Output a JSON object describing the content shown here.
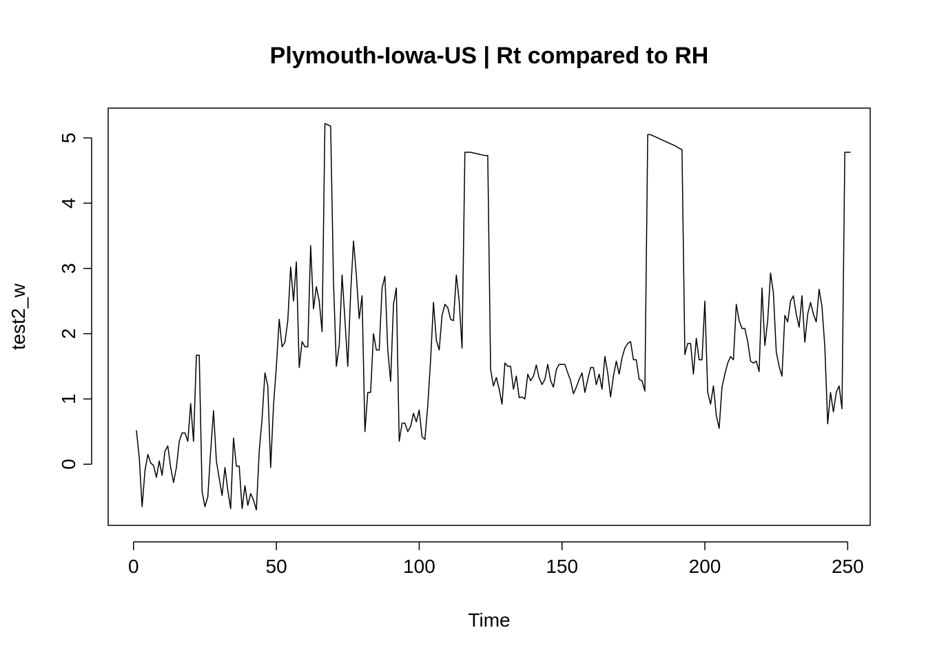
{
  "chart_data": {
    "type": "line",
    "title": "Plymouth-Iowa-US | Rt compared to RH",
    "xlabel": "Time",
    "ylabel": "test2_w",
    "xlim": [
      1,
      248
    ],
    "ylim": [
      -0.7,
      5.22
    ],
    "x_ticks": [
      0,
      50,
      100,
      150,
      200,
      250
    ],
    "y_ticks": [
      0,
      1,
      2,
      3,
      4,
      5
    ],
    "x_tick_labels": [
      "0",
      "50",
      "100",
      "150",
      "200",
      "250"
    ],
    "y_tick_labels": [
      "0",
      "1",
      "2",
      "3",
      "4",
      "5"
    ],
    "grid": false,
    "series": [
      {
        "values": [
          0.52,
          0.1,
          -0.65,
          -0.1,
          0.15,
          0.02,
          -0.02,
          -0.2,
          0.05,
          -0.17,
          0.2,
          0.28,
          -0.05,
          -0.28,
          -0.05,
          0.35,
          0.48,
          0.48,
          0.35,
          0.93,
          0.35,
          1.67,
          1.67,
          -0.42,
          -0.65,
          -0.5,
          0.2,
          0.82,
          0.05,
          -0.22,
          -0.48,
          -0.05,
          -0.4,
          -0.68,
          0.4,
          -0.03,
          -0.03,
          -0.68,
          -0.33,
          -0.63,
          -0.45,
          -0.55,
          -0.7,
          0.2,
          0.7,
          1.4,
          1.2,
          -0.05,
          0.9,
          1.5,
          2.22,
          1.8,
          1.87,
          2.2,
          3.02,
          2.5,
          3.1,
          1.48,
          1.88,
          1.8,
          1.8,
          3.35,
          2.38,
          2.72,
          2.5,
          2.03,
          5.22,
          5.2,
          5.18,
          2.8,
          1.5,
          1.82,
          2.9,
          2.22,
          1.5,
          2.62,
          3.42,
          2.9,
          2.23,
          2.58,
          0.5,
          1.1,
          1.1,
          2.0,
          1.75,
          1.75,
          2.7,
          2.88,
          1.75,
          1.27,
          2.45,
          2.7,
          0.35,
          0.63,
          0.63,
          0.5,
          0.58,
          0.78,
          0.65,
          0.83,
          0.42,
          0.38,
          0.9,
          1.6,
          2.48,
          1.9,
          1.75,
          2.28,
          2.45,
          2.4,
          2.22,
          2.2,
          2.9,
          2.5,
          1.78,
          4.78,
          4.78,
          4.78,
          4.77,
          4.76,
          4.75,
          4.74,
          4.73,
          4.73,
          1.45,
          1.2,
          1.33,
          1.15,
          0.92,
          1.55,
          1.5,
          1.5,
          1.15,
          1.35,
          1.02,
          1.03,
          1.0,
          1.38,
          1.28,
          1.35,
          1.52,
          1.32,
          1.22,
          1.3,
          1.53,
          1.28,
          1.18,
          1.45,
          1.53,
          1.53,
          1.53,
          1.4,
          1.28,
          1.08,
          1.18,
          1.3,
          1.4,
          1.1,
          1.3,
          1.48,
          1.48,
          1.22,
          1.38,
          1.15,
          1.65,
          1.4,
          1.03,
          1.35,
          1.58,
          1.38,
          1.63,
          1.78,
          1.85,
          1.88,
          1.6,
          1.6,
          1.3,
          1.28,
          1.12,
          5.05,
          5.05,
          5.03,
          5.01,
          4.99,
          4.97,
          4.95,
          4.93,
          4.91,
          4.89,
          4.87,
          4.84,
          4.82,
          1.68,
          1.85,
          1.85,
          1.38,
          1.93,
          1.6,
          1.6,
          2.5,
          1.1,
          0.92,
          1.2,
          0.75,
          0.55,
          1.18,
          1.38,
          1.55,
          1.65,
          1.6,
          2.45,
          2.2,
          2.08,
          2.08,
          1.88,
          1.58,
          1.55,
          1.58,
          1.42,
          2.7,
          1.82,
          2.2,
          2.93,
          2.62,
          1.72,
          1.5,
          1.35,
          2.28,
          2.18,
          2.5,
          2.58,
          2.3,
          2.1,
          2.58,
          1.87,
          2.3,
          2.48,
          2.3,
          2.18,
          2.68,
          2.42,
          1.8,
          0.62,
          1.1,
          0.8,
          1.1,
          1.2,
          0.85,
          4.78,
          4.78,
          4.78
        ]
      }
    ]
  }
}
